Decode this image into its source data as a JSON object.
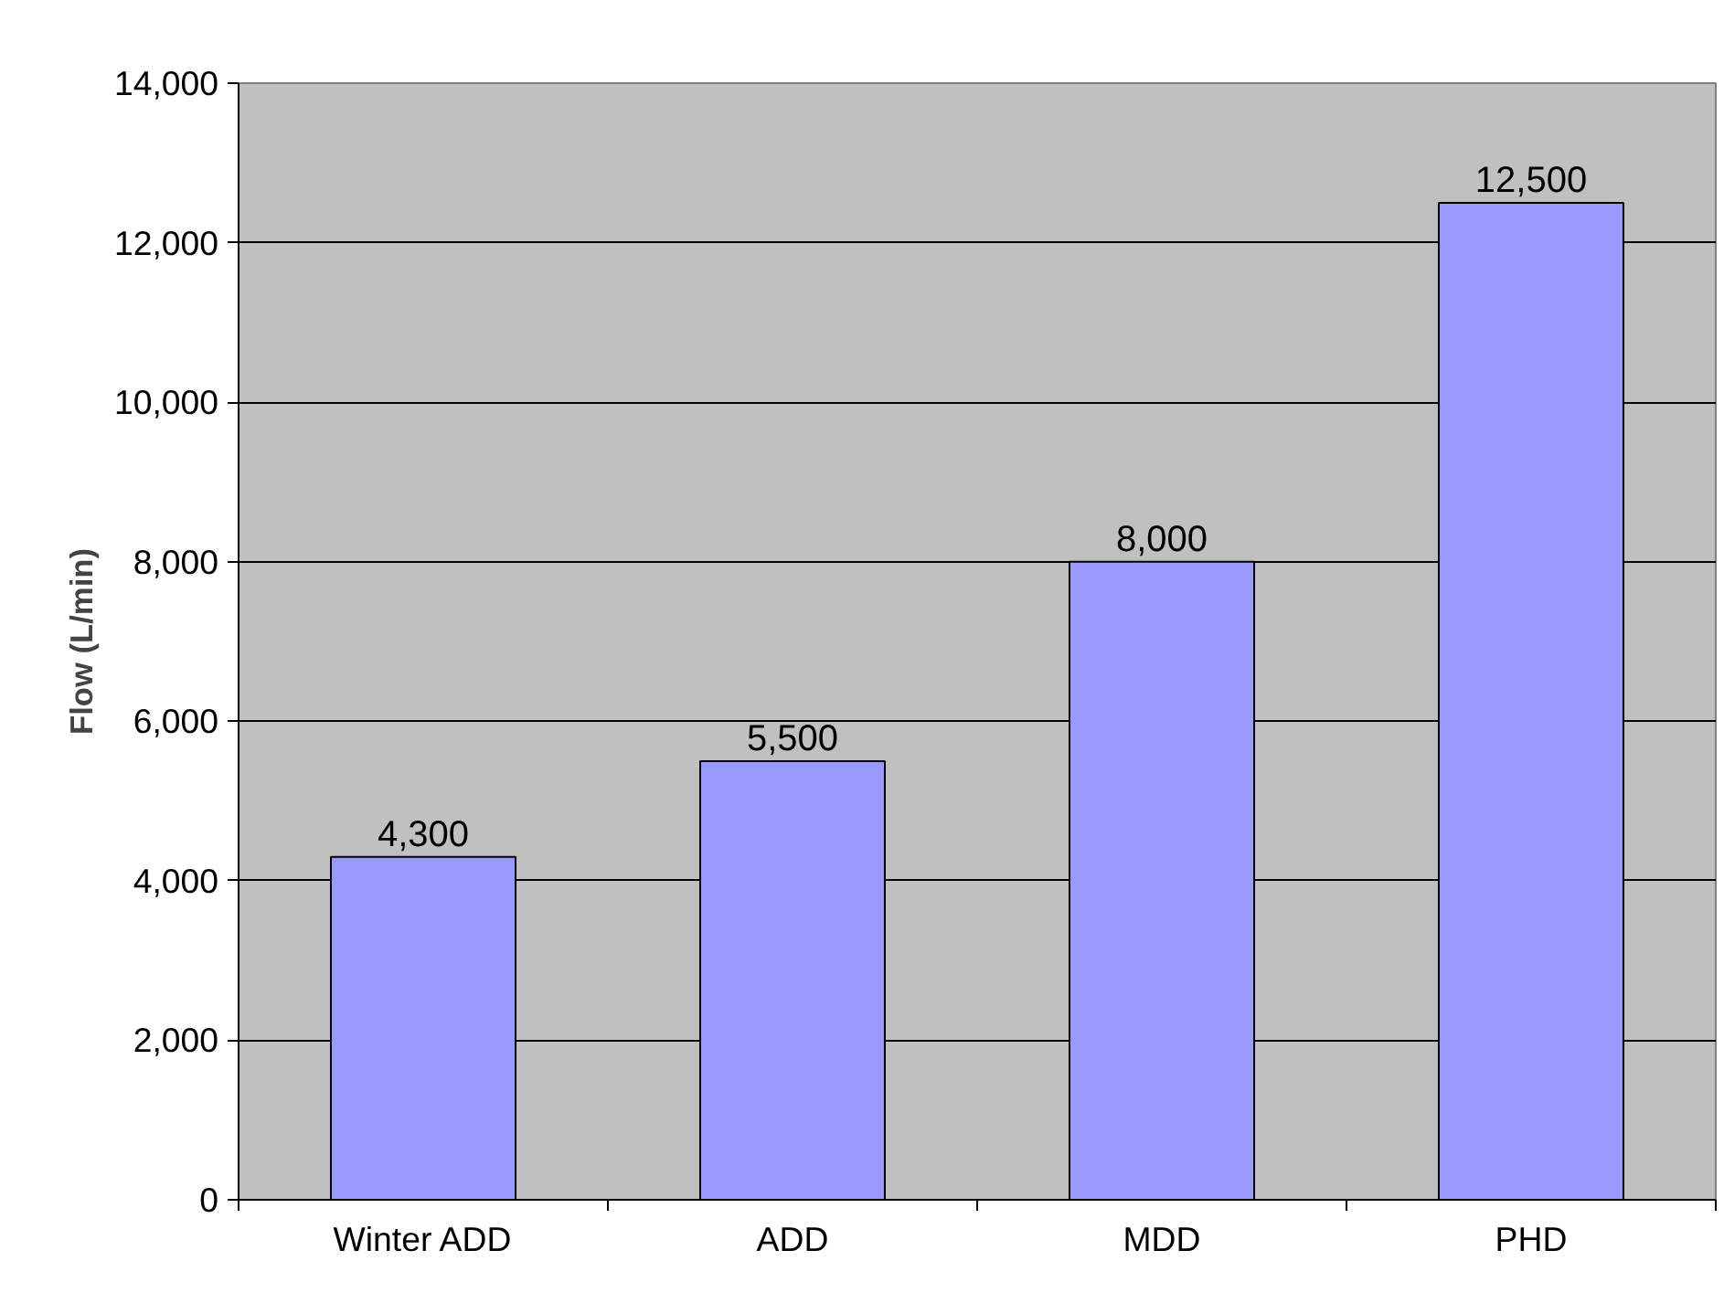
{
  "chart_data": {
    "type": "bar",
    "ylabel": "Flow (L/min)",
    "categories": [
      "Winter ADD",
      "ADD",
      "MDD",
      "PHD"
    ],
    "values": [
      4300,
      5500,
      8000,
      12500
    ],
    "color": "#9999ff",
    "ylim": [
      0,
      14000
    ],
    "yticks": [
      0,
      {
        "value": 2000,
        "label": "2,000"
      },
      {
        "value": 4000,
        "label": "4,000"
      },
      {
        "value": 6000,
        "label": "6,000"
      },
      {
        "value": 8000,
        "label": "8,000"
      },
      {
        "value": 10000,
        "label": "10,000"
      },
      {
        "value": 12000,
        "label": "12,000"
      },
      {
        "value": 14000,
        "label": "14,000"
      }
    ],
    "grid": "y",
    "value_labels": [
      "4,300",
      "5,500",
      "8,000",
      "12,500"
    ]
  }
}
